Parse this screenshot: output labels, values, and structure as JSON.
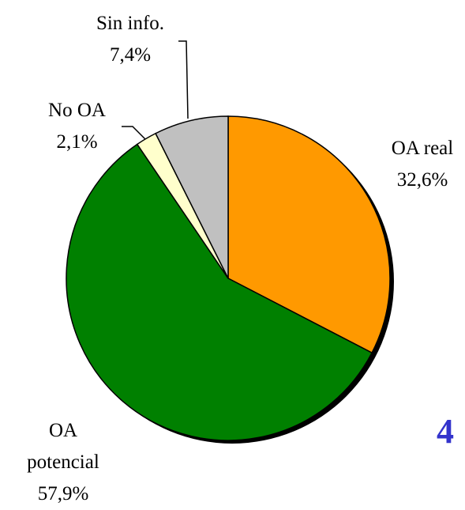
{
  "chart_data": {
    "type": "pie",
    "categories": [
      "OA real",
      "OA potencial",
      "No OA",
      "Sin info."
    ],
    "values": [
      32.6,
      57.9,
      2.1,
      7.4
    ],
    "value_labels": [
      "32,6%",
      "57,9%",
      "2,1%",
      "7,4%"
    ],
    "colors": [
      "#ff9900",
      "#008000",
      "#ffffcc",
      "#c0c0c0"
    ],
    "annotation": "4"
  }
}
